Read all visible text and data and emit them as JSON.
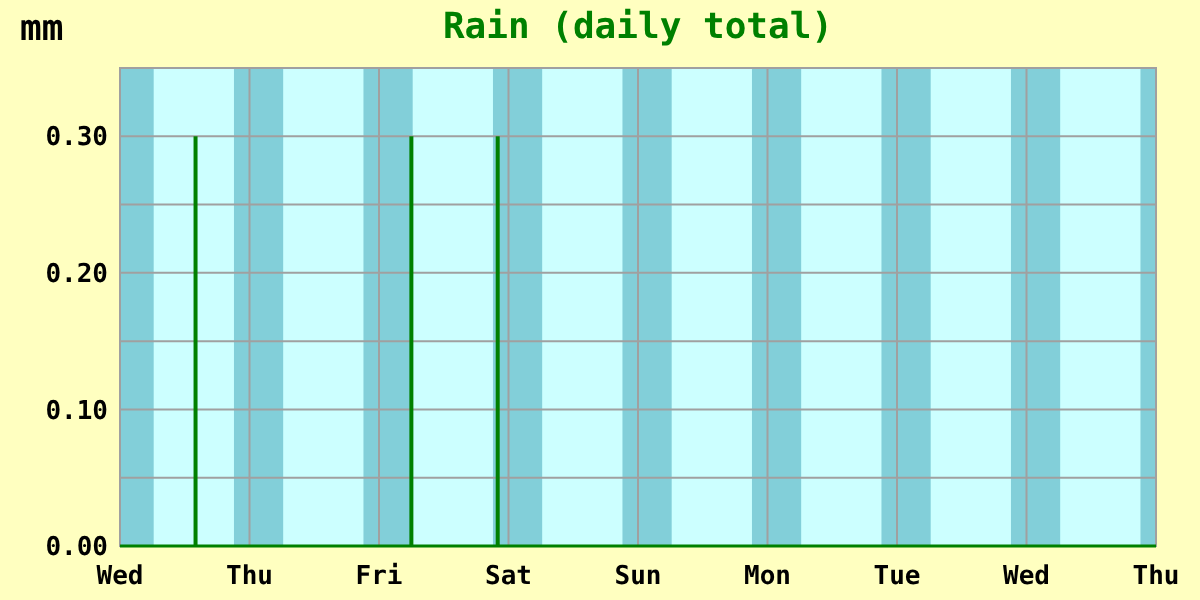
{
  "chart_data": {
    "type": "bar",
    "title": "Rain (daily total)",
    "ylabel": "mm",
    "categories": [
      "Wed",
      null,
      null,
      null,
      null,
      null,
      null,
      null,
      null,
      null,
      null,
      null,
      "Thu",
      null,
      null,
      null,
      null,
      null,
      null,
      null,
      null,
      null,
      null,
      null,
      "Fri",
      null,
      null,
      null,
      null,
      null,
      null,
      null,
      null,
      null,
      null,
      null,
      "Sat",
      null,
      null,
      null,
      null,
      null,
      null,
      null,
      null,
      null,
      null,
      null,
      "Sun",
      null,
      null,
      null,
      null,
      null,
      null,
      null,
      null,
      null,
      null,
      null,
      "Mon",
      null,
      null,
      null,
      null,
      null,
      null,
      null,
      null,
      null,
      null,
      null,
      "Tue",
      null,
      null,
      null,
      null,
      null,
      null,
      null,
      null,
      null,
      null,
      null,
      "Wed",
      null,
      null,
      null,
      null,
      null,
      null,
      null,
      null,
      null,
      null,
      null,
      "Thu"
    ],
    "series": [
      {
        "color": "#008000",
        "values": [
          null,
          null,
          null,
          null,
          null,
          null,
          null,
          0.3,
          null,
          null,
          null,
          null,
          null,
          null,
          null,
          null,
          null,
          null,
          null,
          null,
          null,
          null,
          null,
          null,
          null,
          null,
          null,
          0.3,
          null,
          null,
          null,
          null,
          null,
          null,
          null,
          0.3,
          null,
          null,
          null,
          null,
          null,
          null,
          null,
          null,
          null,
          null,
          null,
          null,
          null,
          null,
          null,
          null,
          null,
          null,
          null,
          null,
          null,
          null,
          null,
          null,
          null,
          null,
          null,
          null,
          null,
          null,
          null,
          null,
          null,
          null,
          null,
          null,
          null,
          null,
          null,
          null,
          null,
          null,
          null,
          null,
          null,
          null,
          null,
          null,
          null,
          null,
          null,
          null,
          null,
          null,
          null,
          null,
          null,
          null,
          null,
          null,
          null
        ]
      }
    ],
    "ylim": [
      0,
      0.35
    ],
    "yticks": [
      {
        "value": 0,
        "label": "0.00"
      },
      {
        "value": 0.05,
        "label": null
      },
      {
        "value": 0.1,
        "label": "0.10"
      },
      {
        "value": 0.15,
        "label": null
      },
      {
        "value": 0.2,
        "label": "0.20"
      },
      {
        "value": 0.25,
        "label": null
      },
      {
        "value": 0.3,
        "label": "0.30"
      }
    ],
    "grid": true
  }
}
